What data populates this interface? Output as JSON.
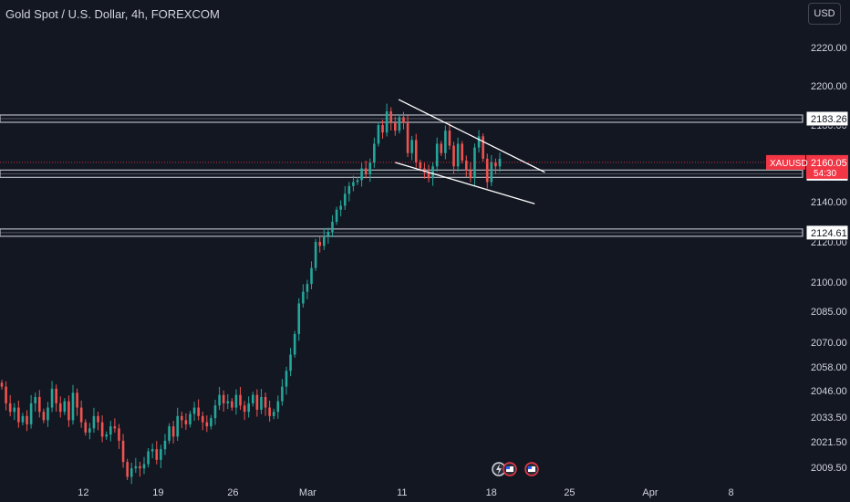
{
  "header": {
    "title": "Gold Spot / U.S. Dollar, 4h, FOREXCOM",
    "currency": "USD"
  },
  "colors": {
    "background": "#131722",
    "up": "#26a69a",
    "down": "#ef5350",
    "text": "#d1d4dc",
    "zone": "#d1d4dc",
    "price_badge": "#f23645"
  },
  "chart_data": {
    "type": "candlestick",
    "title": "Gold Spot / U.S. Dollar, 4h, FOREXCOM",
    "symbol": "XAUUSD",
    "timeframe": "4h",
    "y_ticks": [
      2009.5,
      2021.5,
      2033.5,
      2046.0,
      2058.0,
      2070.0,
      2085.0,
      2100.0,
      2120.0,
      2140.0,
      2160.0,
      2180.0,
      2200.0,
      2220.0
    ],
    "y_tick_labels": [
      "2009.50",
      "2021.50",
      "2033.50",
      "2046.00",
      "2058.00",
      "2070.00",
      "2085.00",
      "2100.00",
      "2120.00",
      "2140.00",
      "2160.00",
      "2180.00",
      "2200.00",
      "2220.00"
    ],
    "x_ticks": [
      {
        "label": "12",
        "pos": 0.098
      },
      {
        "label": "19",
        "pos": 0.186
      },
      {
        "label": "26",
        "pos": 0.274
      },
      {
        "label": "Mar",
        "pos": 0.362
      },
      {
        "label": "11",
        "pos": 0.473
      },
      {
        "label": "18",
        "pos": 0.578
      },
      {
        "label": "25",
        "pos": 0.67
      },
      {
        "label": "Apr",
        "pos": 0.765
      },
      {
        "label": "8",
        "pos": 0.86
      }
    ],
    "levels": [
      {
        "value": 2183.26,
        "label": "2183.26"
      },
      {
        "value": 2154.26,
        "label": "2154.26"
      },
      {
        "value": 2124.61,
        "label": "2124.61"
      }
    ],
    "last_price": {
      "value": 2160.05,
      "label": "2160.05",
      "countdown": "54:30",
      "symbol": "XAUUSD"
    },
    "trendlines": [
      {
        "from": [
          0.469,
          2193.0
        ],
        "to": [
          0.641,
          2155.0
        ]
      },
      {
        "from": [
          0.465,
          2160.0
        ],
        "to": [
          0.629,
          2139.0
        ]
      }
    ],
    "candles_closes": [
      2048,
      2040,
      2036,
      2038,
      2031,
      2034,
      2030,
      2040,
      2043,
      2036,
      2032,
      2038,
      2047,
      2040,
      2036,
      2041,
      2032,
      2045,
      2038,
      2031,
      2026,
      2028,
      2034,
      2031,
      2024,
      2025,
      2029,
      2028,
      2022,
      2012,
      2005,
      2009,
      2010,
      2009,
      2011,
      2017,
      2018,
      2013,
      2018,
      2022,
      2029,
      2024,
      2034,
      2032,
      2030,
      2035,
      2038,
      2034,
      2031,
      2029,
      2033,
      2039,
      2044,
      2040,
      2041,
      2038,
      2044,
      2039,
      2036,
      2040,
      2044,
      2037,
      2043,
      2038,
      2034,
      2036,
      2041,
      2048,
      2056,
      2064,
      2074,
      2089,
      2095,
      2099,
      2107,
      2120,
      2118,
      2123,
      2125,
      2130,
      2136,
      2138,
      2144,
      2148,
      2150,
      2151,
      2157,
      2154,
      2160,
      2170,
      2180,
      2176,
      2187,
      2181,
      2177,
      2184,
      2181,
      2165,
      2172,
      2160,
      2157,
      2155,
      2152,
      2158,
      2170,
      2165,
      2177,
      2169,
      2158,
      2170,
      2161,
      2156,
      2152,
      2168,
      2174,
      2162,
      2150,
      2160,
      2158,
      2162
    ],
    "events": [
      "lightning-flag",
      "us-flag",
      "us-flag"
    ]
  }
}
